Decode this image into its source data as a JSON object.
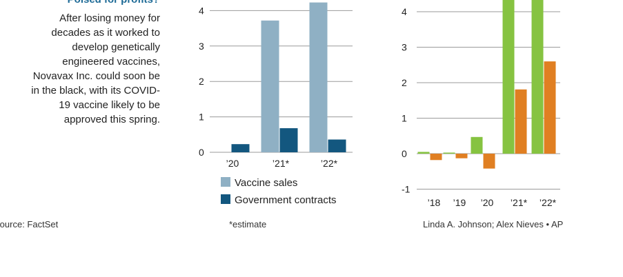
{
  "header": {
    "headline": "Poised for profits?",
    "blurb": "After losing money for decades as it worked to develop genetically engineered vaccines, Novavax Inc. could soon be in the black, with its COVID-19 vaccine likely to be approved this spring."
  },
  "footer": {
    "source": "Source: FactSet",
    "note": "*estimate",
    "credit": "Linda A. Johnson; Alex Nieves • AP"
  },
  "colors": {
    "vaccine": "#8fb0c4",
    "government": "#13577f",
    "green": "#86c341",
    "orange": "#e07f22",
    "grid": "#9a9a9a"
  },
  "chart_data": [
    {
      "type": "bar",
      "categories": [
        "’20",
        "’21*",
        "’22*"
      ],
      "series": [
        {
          "name": "Vaccine sales",
          "values": [
            0,
            3.72,
            4.23
          ]
        },
        {
          "name": "Government contracts",
          "values": [
            0.23,
            0.68,
            0.36
          ]
        }
      ],
      "yticks": [
        0,
        1,
        2,
        3,
        4
      ],
      "ylim": [
        0,
        4.3
      ],
      "legend": "bottom"
    },
    {
      "type": "bar",
      "categories": [
        "’18",
        "’19",
        "’20",
        "’21*",
        "’22*"
      ],
      "series": [
        {
          "values": [
            0.05,
            0.03,
            0.47,
            4.6,
            4.6
          ]
        },
        {
          "values": [
            -0.18,
            -0.13,
            -0.42,
            1.81,
            2.6
          ]
        }
      ],
      "yticks": [
        -1,
        0,
        1,
        2,
        3,
        4
      ],
      "ylim": [
        -1,
        4.3
      ]
    }
  ]
}
